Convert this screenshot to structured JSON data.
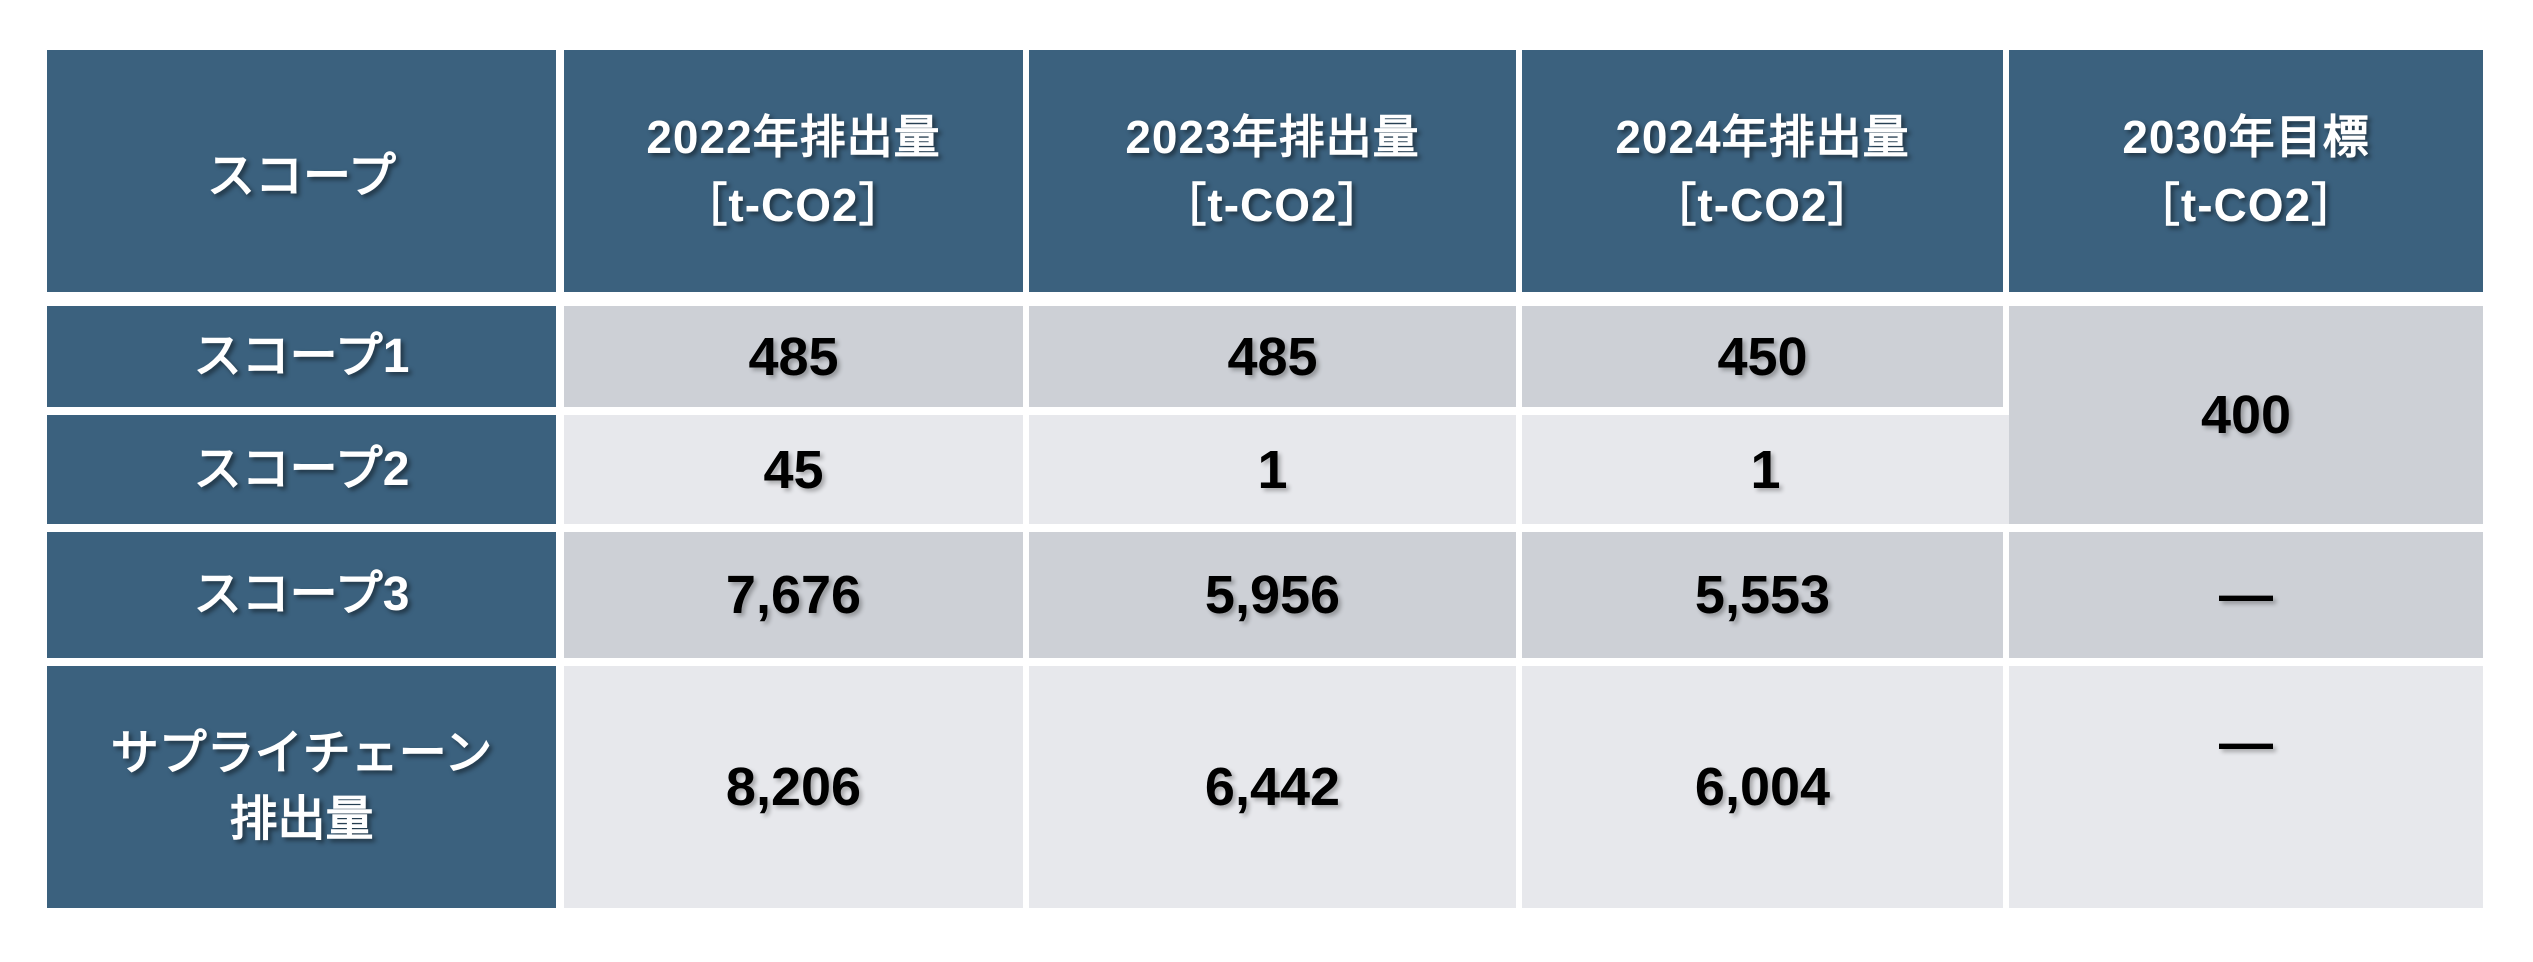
{
  "table": {
    "header": {
      "scope": "スコープ",
      "columns": [
        {
          "line1": "2022年排出量",
          "line2": "［t-CO2］"
        },
        {
          "line1": "2023年排出量",
          "line2": "［t-CO2］"
        },
        {
          "line1": "2024年排出量",
          "line2": "［t-CO2］"
        },
        {
          "line1": "2030年目標",
          "line2": "［t-CO2］"
        }
      ]
    },
    "rows": [
      {
        "label": "スコープ1",
        "values": [
          "485",
          "485",
          "450"
        ],
        "target": "400"
      },
      {
        "label": "スコープ2",
        "values": [
          "45",
          "1",
          "1"
        ]
      },
      {
        "label": "スコープ3",
        "values": [
          "7,676",
          "5,956",
          "5,553"
        ],
        "target": "—"
      },
      {
        "label": "サプライチェーン排出量",
        "label_line1": "サプライチェーン",
        "label_line2": "排出量",
        "values": [
          "8,206",
          "6,442",
          "6,004"
        ],
        "target": "—"
      }
    ]
  },
  "colors": {
    "header_blue": "#3B617E",
    "band_dark": "#CDD0D6",
    "band_light": "#E7E8EC",
    "gridline_white": "#FFFFFF",
    "header_text": "#FFFFFF",
    "value_text": "#000000"
  },
  "chart_data": {
    "type": "table",
    "columns": [
      "スコープ",
      "2022年排出量［t-CO2］",
      "2023年排出量［t-CO2］",
      "2024年排出量［t-CO2］",
      "2030年目標［t-CO2］"
    ],
    "rows": [
      [
        "スコープ1",
        "485",
        "485",
        "450",
        "400"
      ],
      [
        "スコープ2",
        "45",
        "1",
        "1",
        "400 (merged cell shared with スコープ1)"
      ],
      [
        "スコープ3",
        "7,676",
        "5,956",
        "5,553",
        "—"
      ],
      [
        "サプライチェーン排出量",
        "8,206",
        "6,442",
        "6,004",
        "—"
      ]
    ],
    "years": [
      "2022",
      "2023",
      "2024"
    ],
    "unit": "t-CO2",
    "values_numeric": {
      "scope1": [
        485,
        485,
        450
      ],
      "scope2": [
        45,
        1,
        1
      ],
      "scope3": [
        7676,
        5956,
        5553
      ],
      "supply_chain_total": [
        8206,
        6442,
        6004
      ],
      "target_2030_scope1_and_2": 400
    },
    "merged_cells": [
      {
        "column": "2030年目標［t-CO2］",
        "spans_rows": [
          "スコープ1",
          "スコープ2"
        ],
        "value": "400"
      }
    ],
    "legend_position": "none",
    "grid": "white gridlines between cells"
  }
}
